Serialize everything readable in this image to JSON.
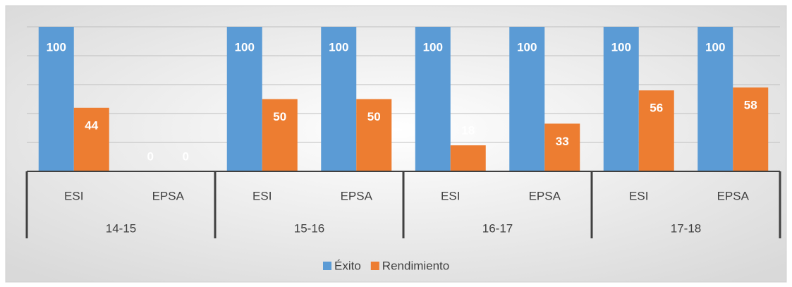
{
  "chart_data": {
    "type": "bar",
    "categories": [
      "ESI",
      "EPSA",
      "ESI",
      "EPSA",
      "ESI",
      "EPSA",
      "ESI",
      "EPSA"
    ],
    "category_groups": [
      "14-15",
      "15-16",
      "16-17",
      "17-18"
    ],
    "series": [
      {
        "name": "Éxito",
        "color": "#5b9bd5",
        "values": [
          100,
          0,
          100,
          100,
          100,
          100,
          100,
          100
        ]
      },
      {
        "name": "Rendimiento",
        "color": "#ed7d31",
        "values": [
          44,
          0,
          50,
          50,
          18,
          33,
          56,
          58
        ]
      }
    ],
    "ylim": [
      0,
      100
    ],
    "yticks": [
      0,
      20,
      40,
      60,
      80,
      100
    ],
    "grid": true,
    "legend": "bottom"
  }
}
